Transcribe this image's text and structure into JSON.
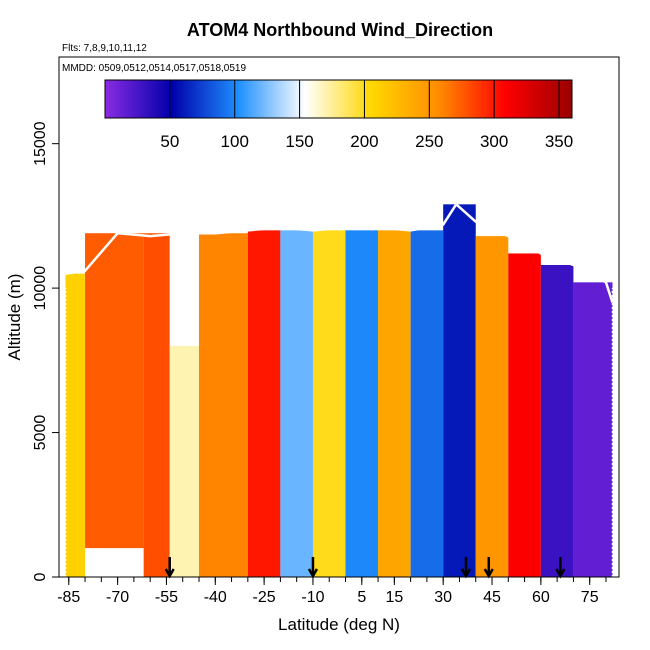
{
  "chart_data": {
    "type": "heatmap",
    "title": "ATOM4 Northbound Wind_Direction",
    "subtitle_flights": "Flts: 7,8,9,10,11,12",
    "subtitle_dates": "MMDD: 0509,0512,0514,0517,0518,0519",
    "xlabel": "Latitude (deg N)",
    "ylabel": "Altitude (m)",
    "xlim": [
      -88,
      84
    ],
    "ylim": [
      0,
      18000
    ],
    "x_ticks": [
      -85,
      -70,
      -55,
      -40,
      -25,
      -10,
      5,
      15,
      30,
      45,
      60,
      75
    ],
    "y_ticks": [
      0,
      5000,
      10000,
      15000
    ],
    "colorbar": {
      "ticks": [
        50,
        100,
        150,
        200,
        250,
        300,
        350
      ],
      "range": [
        0,
        360
      ],
      "colors": [
        "#8a2be2",
        "#0000aa",
        "#1e90ff",
        "#ffffff",
        "#ffd700",
        "#ff8c00",
        "#ff0000",
        "#990000"
      ]
    },
    "arrow_latitudes": [
      -54,
      -10,
      37,
      44,
      66
    ],
    "profile_lat_bounds": [
      -86,
      82
    ],
    "top_altitude_profile": [
      [
        -86,
        10500
      ],
      [
        -80,
        10600
      ],
      [
        -70,
        11900
      ],
      [
        -60,
        11800
      ],
      [
        -50,
        11900
      ],
      [
        -40,
        11900
      ],
      [
        -30,
        12000
      ],
      [
        -20,
        12100
      ],
      [
        -10,
        12000
      ],
      [
        0,
        12100
      ],
      [
        10,
        12100
      ],
      [
        20,
        12000
      ],
      [
        30,
        12200
      ],
      [
        34,
        12900
      ],
      [
        40,
        12300
      ],
      [
        50,
        11800
      ],
      [
        60,
        11200
      ],
      [
        70,
        10800
      ],
      [
        80,
        10200
      ],
      [
        82,
        9500
      ]
    ],
    "value_regions": [
      {
        "lat": [
          -86,
          -80
        ],
        "alt": [
          0,
          10500
        ],
        "wind_direction": 210
      },
      {
        "lat": [
          -80,
          -62
        ],
        "alt": [
          1000,
          11900
        ],
        "wind_direction": 275
      },
      {
        "lat": [
          -62,
          -54
        ],
        "alt": [
          0,
          11900
        ],
        "wind_direction": 280
      },
      {
        "lat": [
          -54,
          -45
        ],
        "alt": [
          0,
          8000
        ],
        "wind_direction": 170
      },
      {
        "lat": [
          -45,
          -30
        ],
        "alt": [
          0,
          11900
        ],
        "wind_direction": 260
      },
      {
        "lat": [
          -30,
          -20
        ],
        "alt": [
          0,
          12000
        ],
        "wind_direction": 300
      },
      {
        "lat": [
          -20,
          -10
        ],
        "alt": [
          0,
          12000
        ],
        "wind_direction": 120
      },
      {
        "lat": [
          -10,
          0
        ],
        "alt": [
          0,
          12000
        ],
        "wind_direction": 200
      },
      {
        "lat": [
          0,
          10
        ],
        "alt": [
          0,
          12000
        ],
        "wind_direction": 100
      },
      {
        "lat": [
          10,
          20
        ],
        "alt": [
          0,
          12000
        ],
        "wind_direction": 240
      },
      {
        "lat": [
          20,
          30
        ],
        "alt": [
          0,
          12000
        ],
        "wind_direction": 90
      },
      {
        "lat": [
          30,
          40
        ],
        "alt": [
          0,
          12900
        ],
        "wind_direction": 60
      },
      {
        "lat": [
          40,
          50
        ],
        "alt": [
          0,
          11800
        ],
        "wind_direction": 250
      },
      {
        "lat": [
          50,
          60
        ],
        "alt": [
          0,
          11200
        ],
        "wind_direction": 310
      },
      {
        "lat": [
          60,
          70
        ],
        "alt": [
          0,
          10800
        ],
        "wind_direction": 30
      },
      {
        "lat": [
          70,
          82
        ],
        "alt": [
          0,
          10200
        ],
        "wind_direction": 15
      }
    ]
  }
}
